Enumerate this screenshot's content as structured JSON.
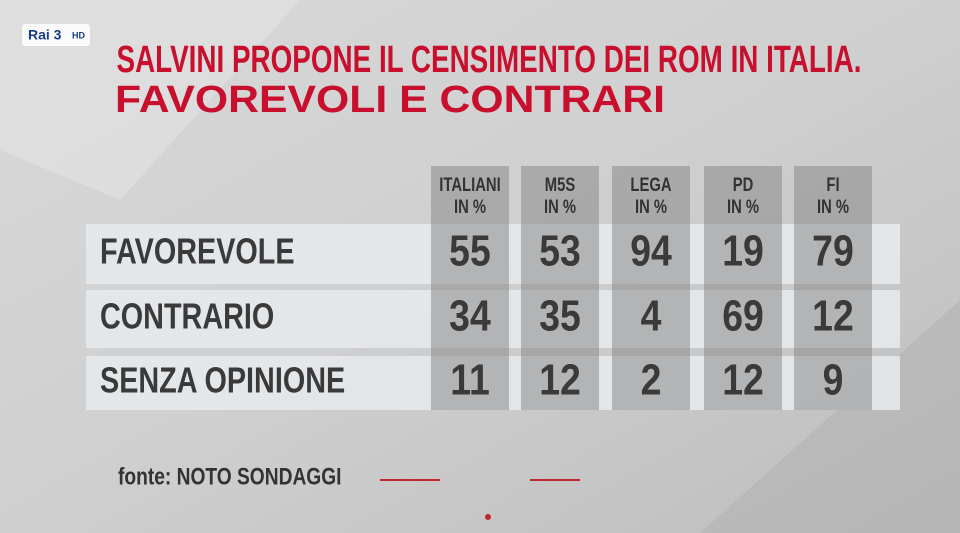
{
  "logo": {
    "brand": "Rai 3",
    "badge": "HD"
  },
  "header": {
    "title_lines": [
      "SALVINI PROPONE IL CENSIMENTO DEI ROM IN ITALIA.",
      "FAVOREVOLI E CONTRARI"
    ]
  },
  "table": {
    "columns": [
      [
        "ITALIANI",
        "IN %"
      ],
      [
        "M5S",
        "IN %"
      ],
      [
        "LEGA",
        "IN %"
      ],
      [
        "PD",
        "IN %"
      ],
      [
        "FI",
        "IN %"
      ]
    ],
    "rows": [
      {
        "label": "FAVOREVOLE",
        "values": [
          55,
          53,
          94,
          19,
          79
        ]
      },
      {
        "label": "CONTRARIO",
        "values": [
          34,
          35,
          4,
          69,
          12
        ]
      },
      {
        "label": "SENZA OPINIONE",
        "values": [
          11,
          12,
          2,
          12,
          9
        ]
      }
    ]
  },
  "source": "fonte: NOTO SONDAGGI"
}
